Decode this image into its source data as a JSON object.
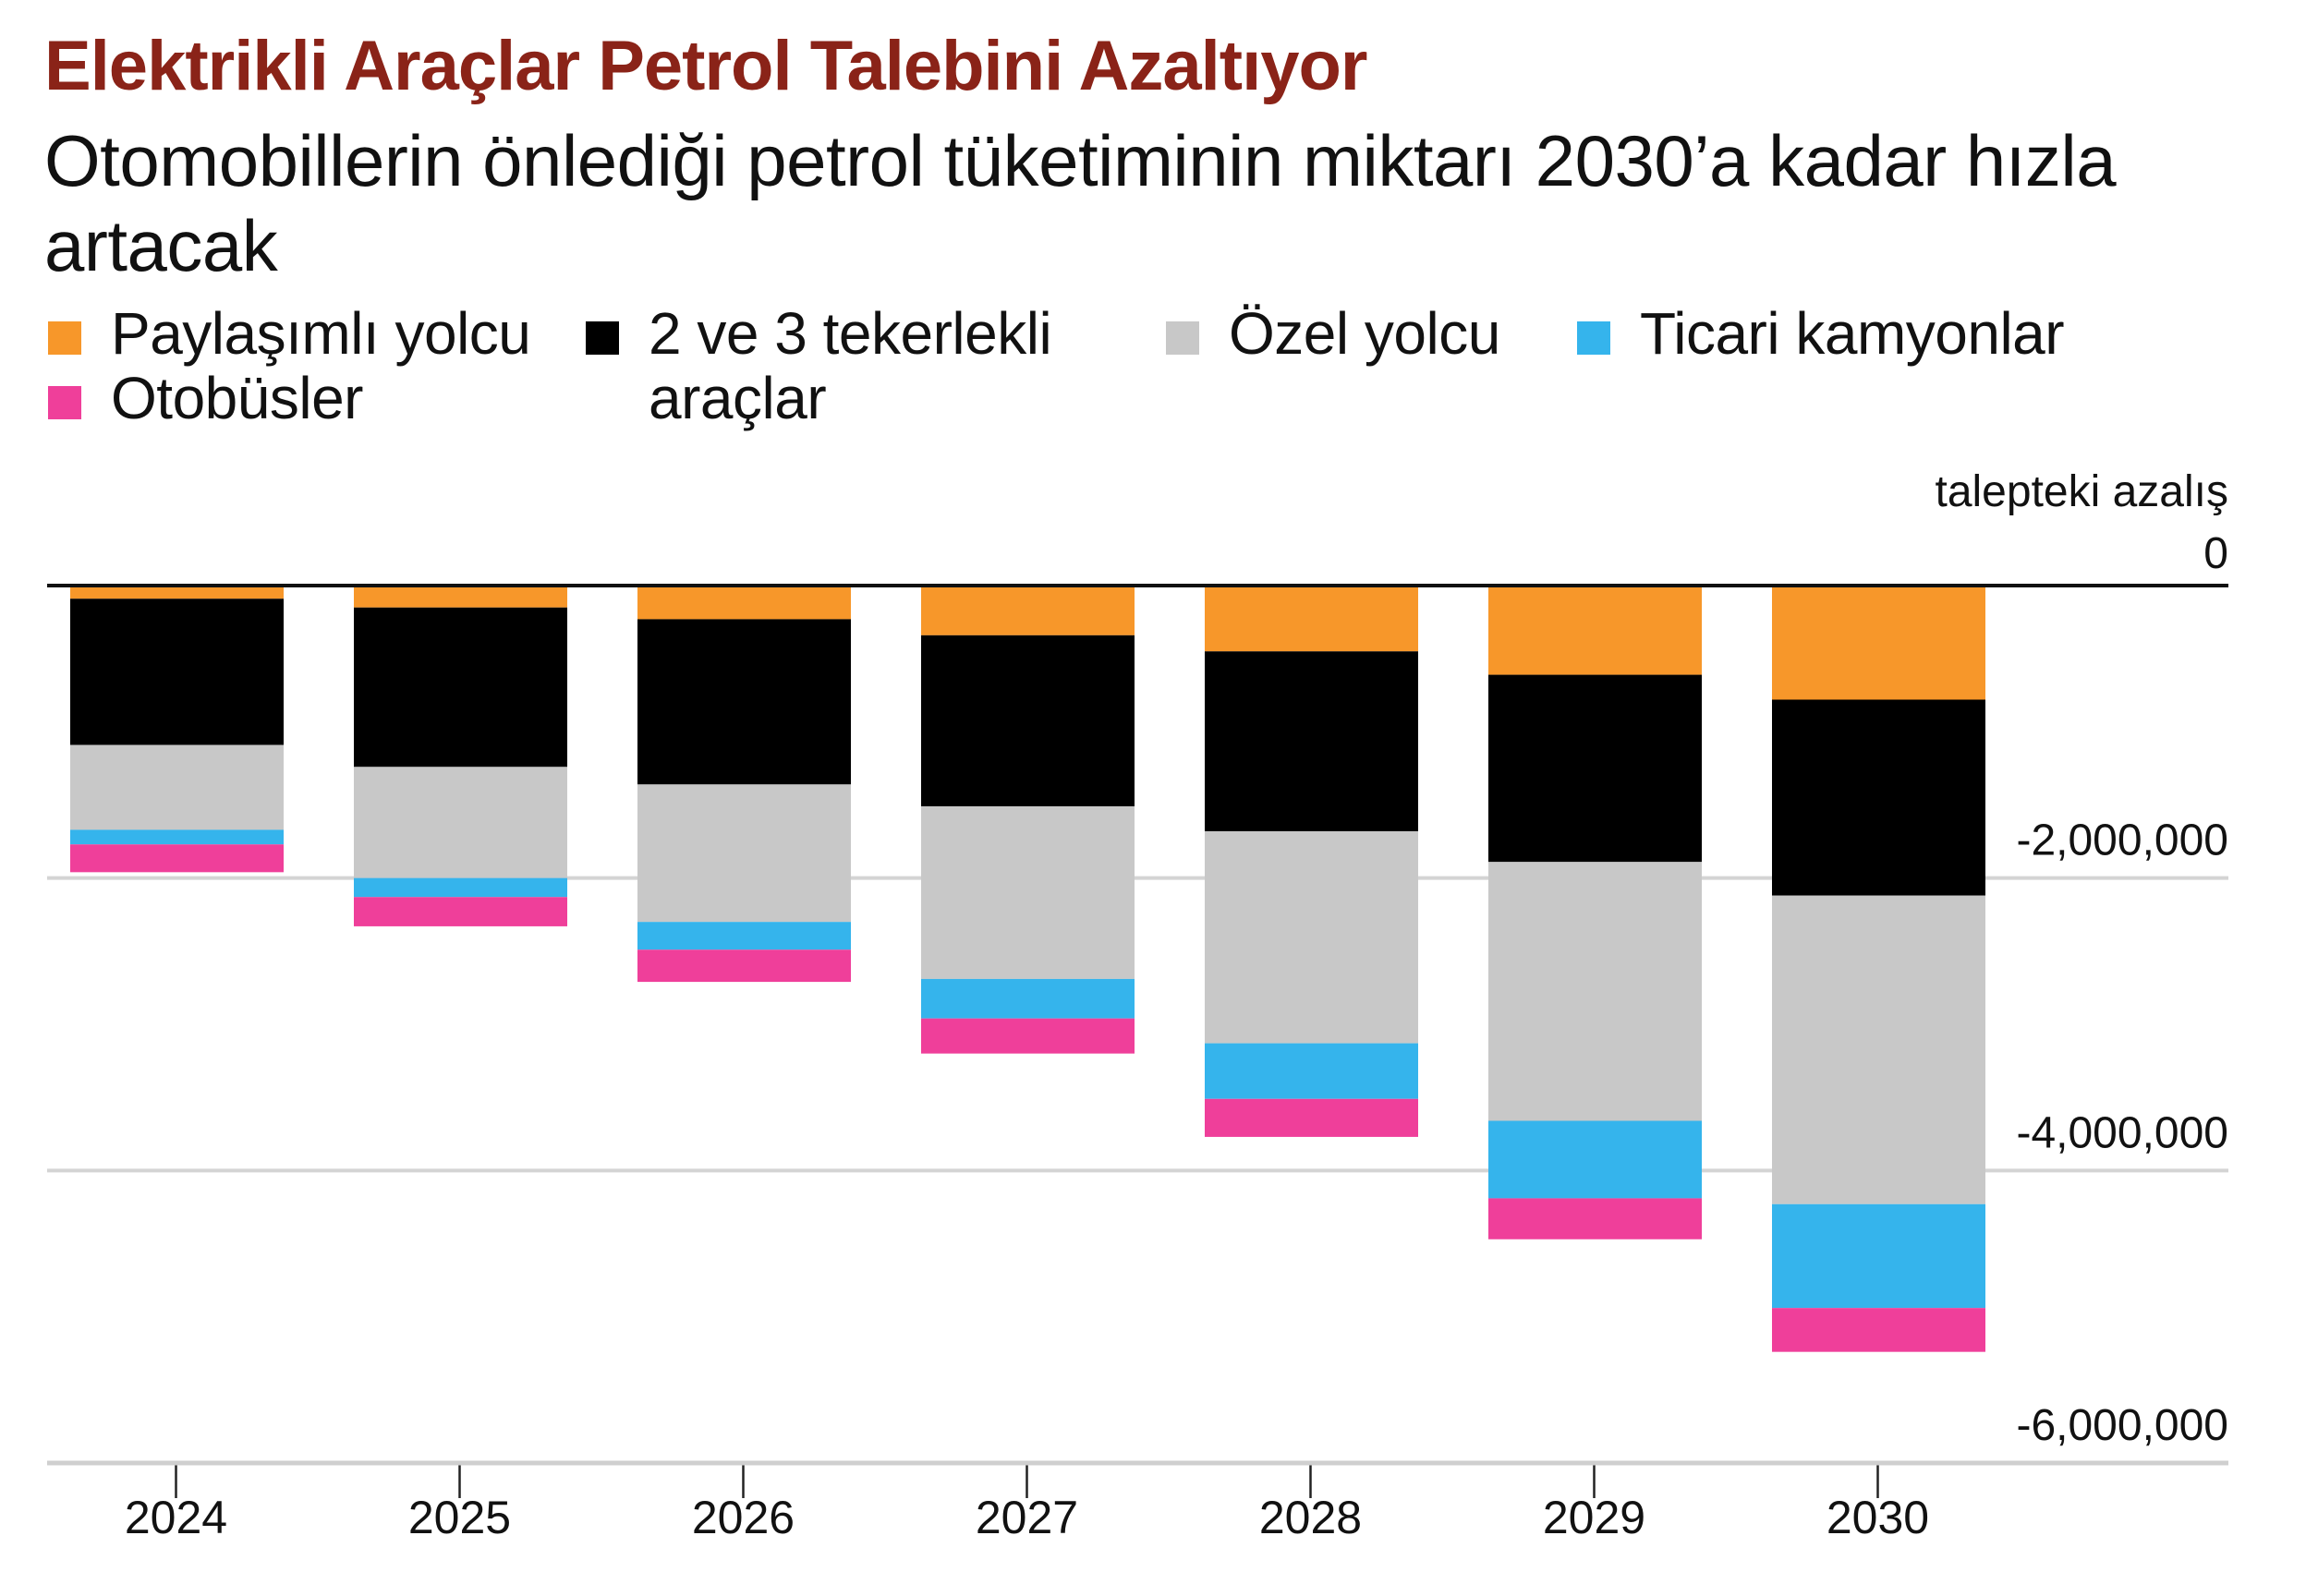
{
  "header": {
    "title": "Elektrikli Araçlar Petrol Talebini Azaltıyor",
    "subtitle": "Otomobillerin önlediği petrol tüketiminin miktarı 2030’a kadar hızla artacak"
  },
  "legend": {
    "items": [
      {
        "label": "Paylaşımlı yolcu",
        "color": "#f7972a"
      },
      {
        "label": "2 ve 3 tekerlekli araçlar",
        "label_line1": "2 ve 3 tekerlekli",
        "label_line2": "araçlar",
        "color": "#000000"
      },
      {
        "label": "Özel yolcu",
        "color": "#c8c8c8"
      },
      {
        "label": "Ticari kamyonlar",
        "color": "#35b4ec"
      },
      {
        "label": "Otobüsler",
        "color": "#ef3f9a"
      }
    ]
  },
  "chart_data": {
    "type": "bar",
    "stacked": true,
    "title": "Elektrikli Araçlar Petrol Talebini Azaltıyor",
    "subtitle": "Otomobillerin önlediği petrol tüketiminin miktarı 2030’a kadar hızla artacak",
    "xlabel": "",
    "ylabel": "talepteki azalış",
    "categories": [
      "2024",
      "2025",
      "2026",
      "2027",
      "2028",
      "2029",
      "2030"
    ],
    "series": [
      {
        "name": "Paylaşımlı yolcu",
        "color": "#f7972a",
        "values": [
          -90000,
          -150000,
          -230000,
          -340000,
          -450000,
          -610000,
          -780000
        ]
      },
      {
        "name": "2 ve 3 tekerlekli araçlar",
        "color": "#000000",
        "values": [
          -1000000,
          -1090000,
          -1130000,
          -1170000,
          -1230000,
          -1280000,
          -1340000
        ]
      },
      {
        "name": "Özel yolcu",
        "color": "#c8c8c8",
        "values": [
          -580000,
          -760000,
          -940000,
          -1180000,
          -1450000,
          -1770000,
          -2110000
        ]
      },
      {
        "name": "Ticari kamyonlar",
        "color": "#35b4ec",
        "values": [
          -100000,
          -130000,
          -190000,
          -270000,
          -380000,
          -530000,
          -710000
        ]
      },
      {
        "name": "Otobüsler",
        "color": "#ef3f9a",
        "values": [
          -190000,
          -200000,
          -220000,
          -240000,
          -260000,
          -280000,
          -300000
        ]
      }
    ],
    "ylim": [
      -6000000,
      0
    ],
    "yticks": [
      0,
      -2000000,
      -4000000,
      -6000000
    ],
    "ytick_labels": [
      "0",
      "-2,000,000",
      "-4,000,000",
      "-6,000,000"
    ],
    "grid": true,
    "legend_position": "top"
  }
}
